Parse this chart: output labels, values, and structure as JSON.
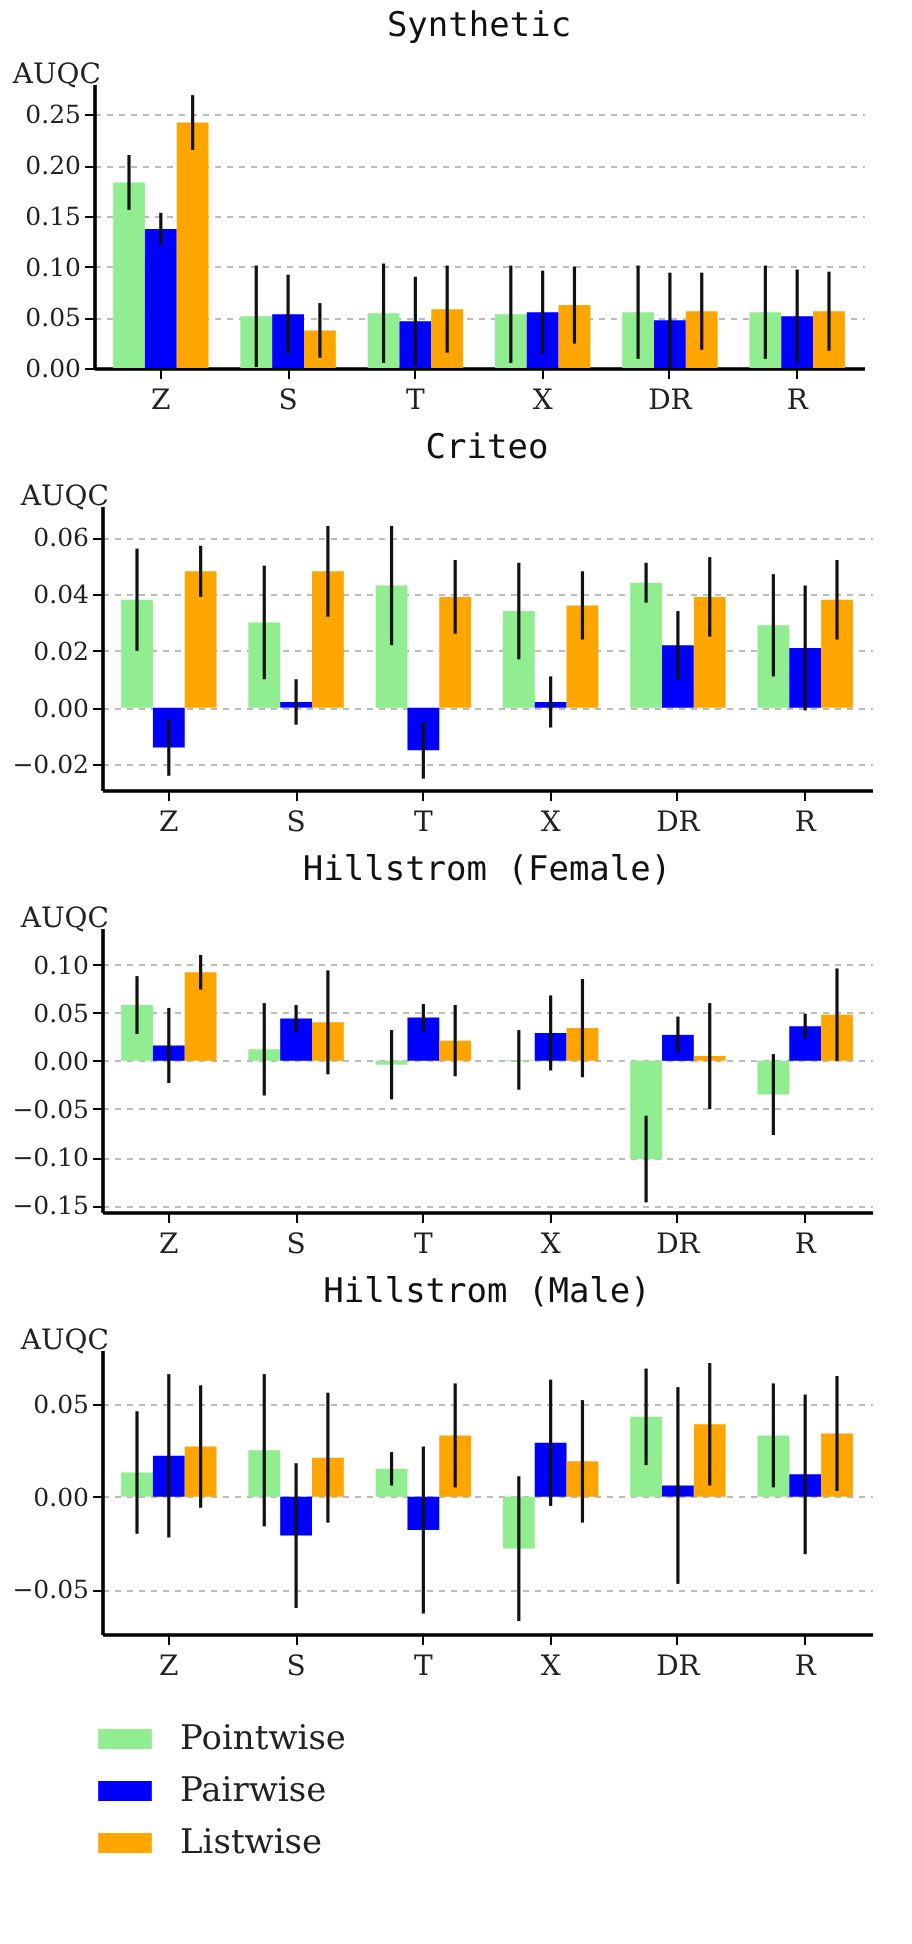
{
  "chart_data": [
    {
      "type": "bar",
      "title": "Synthetic",
      "ylabel": "AUQC",
      "categories": [
        "Z",
        "S",
        "T",
        "X",
        "DR",
        "R"
      ],
      "ylim": [
        0,
        0.28
      ],
      "yticks": [
        {
          "value": 0,
          "label": "0.00"
        },
        {
          "value": 0.05,
          "label": "0.05"
        },
        {
          "value": 0.1,
          "label": "0.10"
        },
        {
          "value": 0.15,
          "label": "0.15"
        },
        {
          "value": 0.2,
          "label": "0.20"
        },
        {
          "value": 0.25,
          "label": "0.25"
        }
      ],
      "grid": "y",
      "series": [
        {
          "color": "#90ee90",
          "values": [
            0.183,
            0.051,
            0.054,
            0.053,
            0.055,
            0.055
          ],
          "errors": [
            0.027,
            0.05,
            0.049,
            0.048,
            0.046,
            0.046
          ]
        },
        {
          "color": "#0000ff",
          "values": [
            0.137,
            0.053,
            0.046,
            0.055,
            0.047,
            0.051
          ],
          "errors": [
            0.016,
            0.039,
            0.044,
            0.041,
            0.047,
            0.046
          ]
        },
        {
          "color": "#ffa500",
          "values": [
            0.242,
            0.037,
            0.058,
            0.062,
            0.056,
            0.056
          ],
          "errors": [
            0.027,
            0.027,
            0.043,
            0.038,
            0.038,
            0.039
          ]
        }
      ]
    },
    {
      "type": "bar",
      "title": "Criteo",
      "ylabel": "AUQC",
      "categories": [
        "Z",
        "S",
        "T",
        "X",
        "DR",
        "R"
      ],
      "ylim": [
        -0.029,
        0.071
      ],
      "yticks": [
        {
          "value": -0.02,
          "label": "−0.02"
        },
        {
          "value": 0,
          "label": "0.00"
        },
        {
          "value": 0.02,
          "label": "0.02"
        },
        {
          "value": 0.04,
          "label": "0.04"
        },
        {
          "value": 0.06,
          "label": "0.06"
        }
      ],
      "grid": "y",
      "series": [
        {
          "color": "#90ee90",
          "values": [
            0.038,
            0.03,
            0.043,
            0.034,
            0.044,
            0.029
          ],
          "errors": [
            0.018,
            0.02,
            0.021,
            0.017,
            0.007,
            0.018
          ]
        },
        {
          "color": "#0000ff",
          "values": [
            -0.014,
            0.002,
            -0.015,
            0.002,
            0.022,
            0.021
          ],
          "errors": [
            0.01,
            0.008,
            0.01,
            0.009,
            0.012,
            0.022
          ]
        },
        {
          "color": "#ffa500",
          "values": [
            0.048,
            0.048,
            0.039,
            0.036,
            0.039,
            0.038
          ],
          "errors": [
            0.009,
            0.016,
            0.013,
            0.012,
            0.014,
            0.014
          ]
        }
      ]
    },
    {
      "type": "bar",
      "title": "Hillstrom (Female)",
      "ylabel": "AUQC",
      "categories": [
        "Z",
        "S",
        "T",
        "X",
        "DR",
        "R"
      ],
      "ylim": [
        -0.157,
        0.138
      ],
      "yticks": [
        {
          "value": -0.15,
          "label": "−0.15"
        },
        {
          "value": -0.1,
          "label": "−0.10"
        },
        {
          "value": -0.05,
          "label": "−0.05"
        },
        {
          "value": 0,
          "label": "0.00"
        },
        {
          "value": 0.05,
          "label": "0.05"
        },
        {
          "value": 0.1,
          "label": "0.10"
        }
      ],
      "grid": "y",
      "series": [
        {
          "color": "#90ee90",
          "values": [
            0.058,
            0.012,
            -0.004,
            0.001,
            -0.102,
            -0.035
          ],
          "errors": [
            0.03,
            0.048,
            0.036,
            0.031,
            0.045,
            0.042
          ]
        },
        {
          "color": "#0000ff",
          "values": [
            0.016,
            0.044,
            0.045,
            0.029,
            0.027,
            0.036
          ],
          "errors": [
            0.039,
            0.014,
            0.014,
            0.039,
            0.019,
            0.013
          ]
        },
        {
          "color": "#ffa500",
          "values": [
            0.092,
            0.04,
            0.021,
            0.034,
            0.005,
            0.048
          ],
          "errors": [
            0.018,
            0.054,
            0.037,
            0.051,
            0.055,
            0.048
          ]
        }
      ]
    },
    {
      "type": "bar",
      "title": "Hillstrom (Male)",
      "ylabel": "AUQC",
      "categories": [
        "Z",
        "S",
        "T",
        "X",
        "DR",
        "R"
      ],
      "ylim": [
        -0.074,
        0.079
      ],
      "yticks": [
        {
          "value": -0.05,
          "label": "−0.05"
        },
        {
          "value": 0,
          "label": "0.00"
        },
        {
          "value": 0.05,
          "label": "0.05"
        }
      ],
      "grid": "y",
      "legend": "bottom",
      "series": [
        {
          "name": "Pointwise",
          "color": "#90ee90",
          "values": [
            0.013,
            0.025,
            0.015,
            -0.028,
            0.043,
            0.033
          ],
          "errors": [
            0.033,
            0.041,
            0.009,
            0.039,
            0.026,
            0.028
          ]
        },
        {
          "name": "Pairwise",
          "color": "#0000ff",
          "values": [
            0.022,
            -0.021,
            -0.018,
            0.029,
            0.006,
            0.012
          ],
          "errors": [
            0.044,
            0.039,
            0.045,
            0.034,
            0.053,
            0.043
          ]
        },
        {
          "name": "Listwise",
          "color": "#ffa500",
          "values": [
            0.027,
            0.021,
            0.033,
            0.019,
            0.039,
            0.034
          ],
          "errors": [
            0.033,
            0.035,
            0.028,
            0.033,
            0.033,
            0.031
          ]
        }
      ]
    }
  ]
}
